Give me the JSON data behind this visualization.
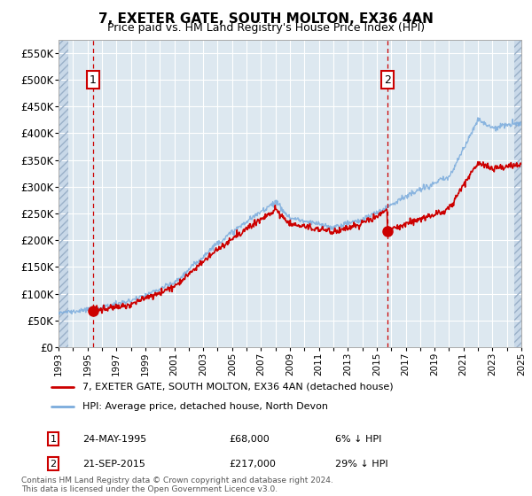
{
  "title": "7, EXETER GATE, SOUTH MOLTON, EX36 4AN",
  "subtitle": "Price paid vs. HM Land Registry's House Price Index (HPI)",
  "price_paid_color": "#cc0000",
  "hpi_color": "#7aabdc",
  "background_color": "#dde8f0",
  "grid_color": "#ffffff",
  "transaction1_date": "24-MAY-1995",
  "transaction1_price": 68000,
  "transaction1_label": "6% ↓ HPI",
  "transaction1_x": 1995.39,
  "transaction2_date": "21-SEP-2015",
  "transaction2_price": 217000,
  "transaction2_label": "29% ↓ HPI",
  "transaction2_x": 2015.72,
  "legend_label_red": "7, EXETER GATE, SOUTH MOLTON, EX36 4AN (detached house)",
  "legend_label_blue": "HPI: Average price, detached house, North Devon",
  "footnote": "Contains HM Land Registry data © Crown copyright and database right 2024.\nThis data is licensed under the Open Government Licence v3.0.",
  "xmin": 1993,
  "xmax": 2025,
  "ylim": [
    0,
    575000
  ],
  "yticks": [
    0,
    50000,
    100000,
    150000,
    200000,
    250000,
    300000,
    350000,
    400000,
    450000,
    500000,
    550000
  ],
  "ytick_labels": [
    "£0",
    "£50K",
    "£100K",
    "£150K",
    "£200K",
    "£250K",
    "£300K",
    "£350K",
    "£400K",
    "£450K",
    "£500K",
    "£550K"
  ]
}
